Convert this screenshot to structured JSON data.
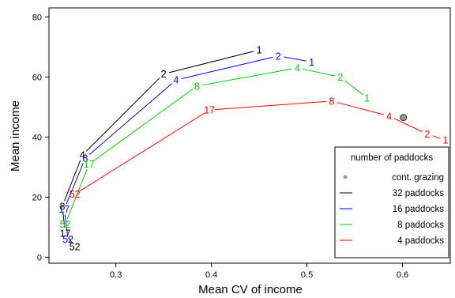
{
  "chart_data": {
    "type": "line",
    "title": "",
    "xlabel": "Mean CV of income",
    "ylabel": "Mean income",
    "xlim": [
      0.23,
      0.65
    ],
    "ylim": [
      -2,
      83
    ],
    "xticks": [
      0.3,
      0.4,
      0.5,
      0.6
    ],
    "xtick_labels": [
      "0.3",
      "0.4",
      "0.5",
      "0.6"
    ],
    "yticks": [
      0,
      20,
      40,
      60,
      80
    ],
    "ytick_labels": [
      "0",
      "20",
      "40",
      "60",
      "80"
    ],
    "grid": false,
    "legend": {
      "title": "number of paddocks",
      "placement": "bottom-right",
      "entries": [
        {
          "label": "cont. grazing",
          "symbol": "point",
          "color": "#999999"
        },
        {
          "label": "32 paddocks",
          "symbol": "line",
          "color": "#000000"
        },
        {
          "label": "16 paddocks",
          "symbol": "line",
          "color": "#0000ff"
        },
        {
          "label": "8 paddocks",
          "symbol": "line",
          "color": "#00cc00"
        },
        {
          "label": "4 paddocks",
          "symbol": "line",
          "color": "#ff0000"
        }
      ]
    },
    "series": [
      {
        "name": "32 paddocks",
        "color": "#000000",
        "points": [
          {
            "label": "52",
            "x": 0.257,
            "y": 3.5
          },
          {
            "label": "17",
            "x": 0.247,
            "y": 8
          },
          {
            "label": "8",
            "x": 0.244,
            "y": 17
          },
          {
            "label": "4",
            "x": 0.265,
            "y": 34
          },
          {
            "label": "2",
            "x": 0.35,
            "y": 61
          },
          {
            "label": "1",
            "x": 0.45,
            "y": 69
          }
        ]
      },
      {
        "name": "16 paddocks",
        "color": "#0000ff",
        "points": [
          {
            "label": "52",
            "x": 0.25,
            "y": 6
          },
          {
            "label": "17",
            "x": 0.246,
            "y": 16
          },
          {
            "label": "8",
            "x": 0.268,
            "y": 33
          },
          {
            "label": "4",
            "x": 0.363,
            "y": 59
          },
          {
            "label": "2",
            "x": 0.47,
            "y": 67
          },
          {
            "label": "1",
            "x": 0.505,
            "y": 65
          }
        ]
      },
      {
        "name": "8 paddocks",
        "color": "#00cc00",
        "points": [
          {
            "label": "52",
            "x": 0.247,
            "y": 11
          },
          {
            "label": "17",
            "x": 0.272,
            "y": 31
          },
          {
            "label": "8",
            "x": 0.385,
            "y": 57
          },
          {
            "label": "4",
            "x": 0.49,
            "y": 63
          },
          {
            "label": "2",
            "x": 0.535,
            "y": 60
          },
          {
            "label": "1",
            "x": 0.563,
            "y": 53
          }
        ]
      },
      {
        "name": "4 paddocks",
        "color": "#ff0000",
        "points": [
          {
            "label": "52",
            "x": 0.257,
            "y": 21
          },
          {
            "label": "17",
            "x": 0.398,
            "y": 49
          },
          {
            "label": "8",
            "x": 0.526,
            "y": 52
          },
          {
            "label": "4",
            "x": 0.586,
            "y": 47
          },
          {
            "label": "2",
            "x": 0.626,
            "y": 41
          },
          {
            "label": "1",
            "x": 0.645,
            "y": 39
          }
        ]
      }
    ],
    "extra_points": [
      {
        "name": "cont. grazing",
        "x": 0.601,
        "y": 46.5,
        "color": "#999999"
      }
    ]
  }
}
